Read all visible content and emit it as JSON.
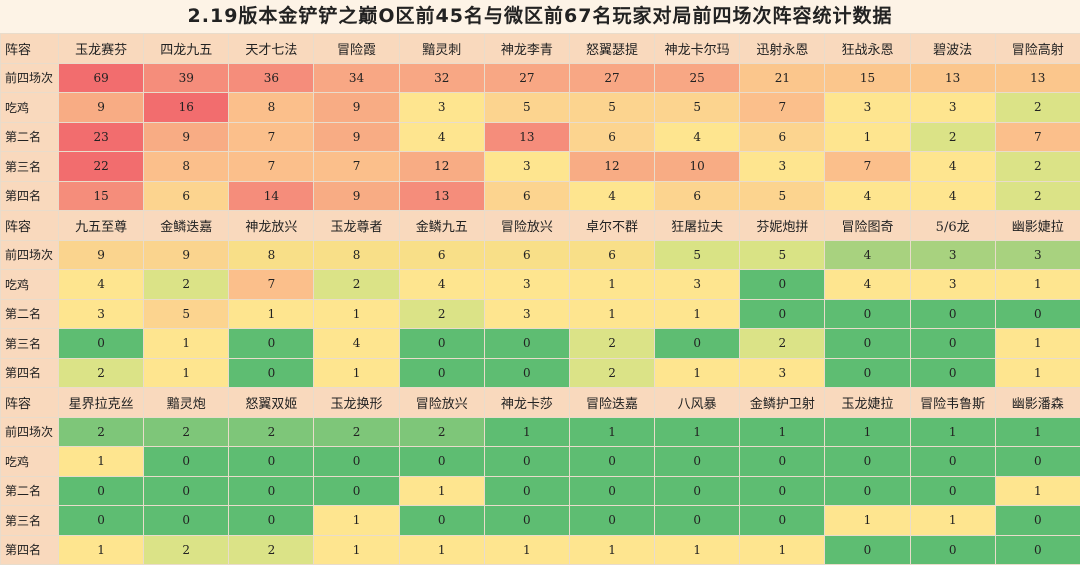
{
  "title": "2.19版本金铲铲之巅O区前45名与微区前67名玩家对局前四场次阵容统计数据",
  "row_labels": {
    "comp": "阵容",
    "top4": "前四场次",
    "first": "吃鸡",
    "second": "第二名",
    "third": "第三名",
    "fourth": "第四名"
  },
  "sections": [
    {
      "comps": [
        "玉龙赛芬",
        "四龙九五",
        "天才七法",
        "冒险霞",
        "黯灵刺",
        "神龙李青",
        "怒翼瑟提",
        "神龙卡尔玛",
        "迅射永恩",
        "狂战永恩",
        "碧波法",
        "冒险高射"
      ],
      "top4": [
        69,
        39,
        36,
        34,
        32,
        27,
        27,
        25,
        21,
        15,
        13,
        13
      ],
      "first": [
        9,
        16,
        8,
        9,
        3,
        5,
        5,
        5,
        7,
        3,
        3,
        2
      ],
      "second": [
        23,
        9,
        7,
        9,
        4,
        13,
        6,
        4,
        6,
        1,
        2,
        7
      ],
      "third": [
        22,
        8,
        7,
        7,
        12,
        3,
        12,
        10,
        3,
        7,
        4,
        2
      ],
      "fourth": [
        15,
        6,
        14,
        9,
        13,
        6,
        4,
        6,
        5,
        4,
        4,
        2
      ]
    },
    {
      "comps": [
        "九五至尊",
        "金鳞迭嘉",
        "神龙放兴",
        "玉龙尊者",
        "金鳞九五",
        "冒险放兴",
        "卓尔不群",
        "狂屠拉夫",
        "芬妮炮拼",
        "冒险图奇",
        "5/6龙",
        "幽影婕拉"
      ],
      "top4": [
        9,
        9,
        8,
        8,
        6,
        6,
        6,
        5,
        5,
        4,
        3,
        3
      ],
      "first": [
        4,
        2,
        7,
        2,
        4,
        3,
        1,
        3,
        0,
        4,
        3,
        1
      ],
      "second": [
        3,
        5,
        1,
        1,
        2,
        3,
        1,
        1,
        0,
        0,
        0,
        0
      ],
      "third": [
        0,
        1,
        0,
        4,
        0,
        0,
        2,
        0,
        2,
        0,
        0,
        1
      ],
      "fourth": [
        2,
        1,
        0,
        1,
        0,
        0,
        2,
        1,
        3,
        0,
        0,
        1
      ]
    },
    {
      "comps": [
        "星界拉克丝",
        "黯灵炮",
        "怒翼双姬",
        "玉龙换形",
        "冒险放兴",
        "神龙卡莎",
        "冒险迭嘉",
        "八风暴",
        "金鳞护卫射",
        "玉龙婕拉",
        "冒险韦鲁斯",
        "幽影潘森"
      ],
      "top4": [
        2,
        2,
        2,
        2,
        2,
        1,
        1,
        1,
        1,
        1,
        1,
        1
      ],
      "first": [
        1,
        0,
        0,
        0,
        0,
        0,
        0,
        0,
        0,
        0,
        0,
        0
      ],
      "second": [
        0,
        0,
        0,
        0,
        1,
        0,
        0,
        0,
        0,
        0,
        0,
        1
      ],
      "third": [
        0,
        0,
        0,
        1,
        0,
        0,
        0,
        0,
        0,
        1,
        1,
        0
      ],
      "fourth": [
        1,
        2,
        2,
        1,
        1,
        1,
        1,
        1,
        1,
        0,
        0,
        0
      ]
    }
  ],
  "heatmap_colors": {
    "top4": [
      {
        "min": 60,
        "color": "#f26d6e"
      },
      {
        "min": 36,
        "color": "#f58d7b"
      },
      {
        "min": 24,
        "color": "#f8a784"
      },
      {
        "min": 12,
        "color": "#fbc68c"
      },
      {
        "min": 9,
        "color": "#fad48e"
      },
      {
        "min": 6,
        "color": "#f8df88"
      },
      {
        "min": 5,
        "color": "#d9e385"
      },
      {
        "min": 3,
        "color": "#a8d27f"
      },
      {
        "min": 2,
        "color": "#7ec679"
      },
      {
        "min": 1,
        "color": "#5ebd72"
      }
    ],
    "placement": [
      {
        "min": 16,
        "color": "#f26d6e"
      },
      {
        "min": 13,
        "color": "#f58d7b"
      },
      {
        "min": 9,
        "color": "#f8ac84"
      },
      {
        "min": 7,
        "color": "#fbbf8b"
      },
      {
        "min": 5,
        "color": "#fcd48f"
      },
      {
        "min": 3,
        "color": "#fee58f"
      },
      {
        "min": 2,
        "color": "#dbe387"
      },
      {
        "min": 1,
        "color": "#fee58f"
      },
      {
        "min": 0,
        "color": "#5ebd72"
      }
    ]
  }
}
